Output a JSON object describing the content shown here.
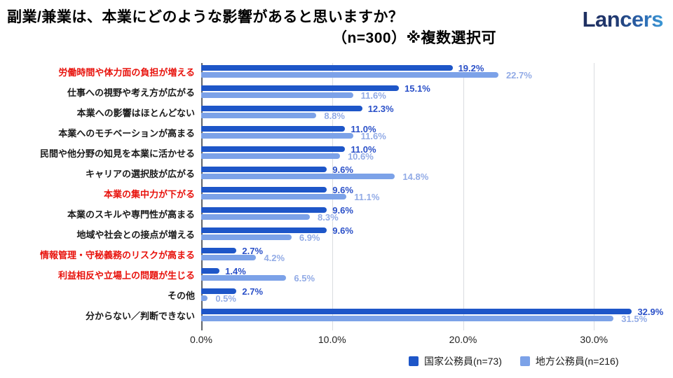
{
  "header": {
    "title_line1": "副業/兼業は、本業にどのような影響があると思いますか？",
    "title_line2": "（n=300）※複数選択可",
    "logo": "Lancers"
  },
  "chart_data": {
    "type": "bar",
    "orientation": "horizontal",
    "title": "副業/兼業は、本業にどのような影響があると思いますか？（n=300）※複数選択可",
    "categories": [
      "労働時間や体力面の負担が増える",
      "仕事への視野や考え方が広がる",
      "本業への影響はほとんどない",
      "本業へのモチベーションが高まる",
      "民間や他分野の知見を本業に活かせる",
      "キャリアの選択肢が広がる",
      "本業の集中力が下がる",
      "本業のスキルや専門性が高まる",
      "地域や社会との接点が増える",
      "情報管理・守秘義務のリスクが高まる",
      "利益相反や立場上の問題が生じる",
      "その他",
      "分からない／判断できない"
    ],
    "category_emphasis": [
      true,
      false,
      false,
      false,
      false,
      false,
      true,
      false,
      false,
      true,
      true,
      false,
      false
    ],
    "category_emphasis_color": "#e8120c",
    "series": [
      {
        "name": "国家公務員(n=73)",
        "color": "#1e56c8",
        "label_color": "#2a50c8",
        "values": [
          19.2,
          15.1,
          12.3,
          11.0,
          11.0,
          9.6,
          9.6,
          9.6,
          9.6,
          2.7,
          1.4,
          2.7,
          32.9
        ]
      },
      {
        "name": "地方公務員(n=216)",
        "color": "#7ca2e8",
        "label_color": "#92abe6",
        "values": [
          22.7,
          11.6,
          8.8,
          11.6,
          10.6,
          14.8,
          11.1,
          8.3,
          6.9,
          4.2,
          6.5,
          0.5,
          31.5
        ]
      }
    ],
    "value_suffix": "%",
    "x_ticks": [
      "0.0%",
      "10.0%",
      "20.0%",
      "30.0%"
    ],
    "x_tick_values": [
      0,
      10,
      20,
      30
    ],
    "xlim": [
      0,
      35.5
    ],
    "grid": true,
    "legend_position": "bottom"
  }
}
